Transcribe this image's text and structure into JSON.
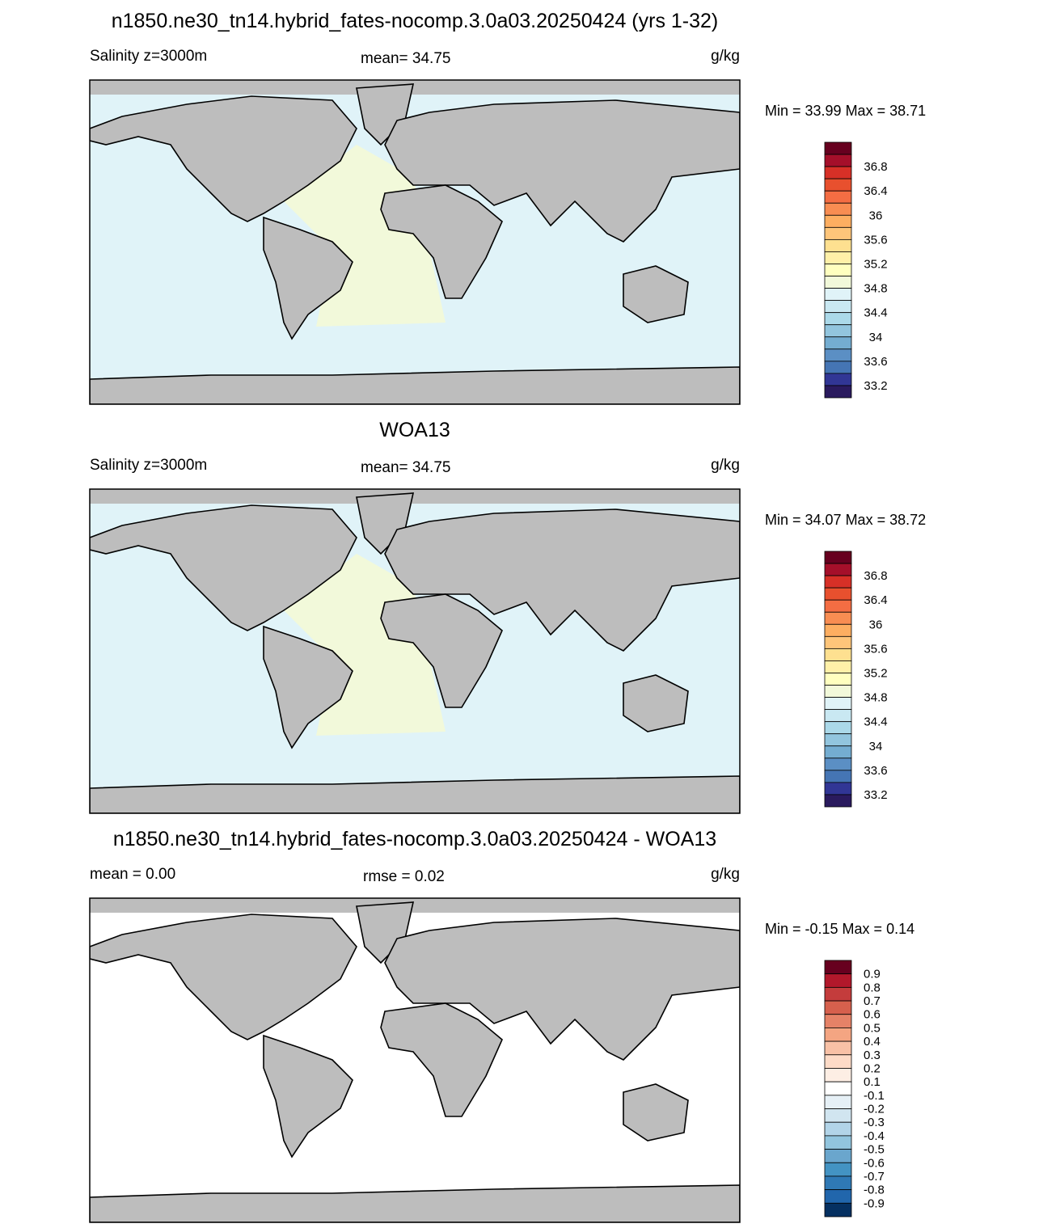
{
  "panels": [
    {
      "title": "n1850.ne30_tn14.hybrid_fates-nocomp.3.0a03.20250424 (yrs 1-32)",
      "left_label": "Salinity z=3000m",
      "center_label": "mean=  34.75",
      "units": "g/kg",
      "min_max": "Min =  33.99 Max =  38.71",
      "colorbar": {
        "labels": [
          36.8,
          36.4,
          36,
          35.6,
          35.2,
          34.8,
          34.4,
          34,
          33.6,
          33.2
        ],
        "colors": [
          "#67001f",
          "#a50f2a",
          "#d73027",
          "#e8502e",
          "#f46d43",
          "#f88d52",
          "#fdae61",
          "#fec57a",
          "#fee090",
          "#fff0a8",
          "#ffffbf",
          "#f2f9da",
          "#e0f3f8",
          "#c9e8f2",
          "#abd9e9",
          "#92c5de",
          "#74add1",
          "#5b8fc4",
          "#4575b4",
          "#313695",
          "#2a1a5e"
        ]
      }
    },
    {
      "title": "WOA13",
      "left_label": "Salinity z=3000m",
      "center_label": "mean=  34.75",
      "units": "g/kg",
      "min_max": "Min =  34.07 Max =  38.72",
      "colorbar": {
        "labels": [
          36.8,
          36.4,
          36,
          35.6,
          35.2,
          34.8,
          34.4,
          34,
          33.6,
          33.2
        ],
        "colors": [
          "#67001f",
          "#a50f2a",
          "#d73027",
          "#e8502e",
          "#f46d43",
          "#f88d52",
          "#fdae61",
          "#fec57a",
          "#fee090",
          "#fff0a8",
          "#ffffbf",
          "#f2f9da",
          "#e0f3f8",
          "#c9e8f2",
          "#abd9e9",
          "#92c5de",
          "#74add1",
          "#5b8fc4",
          "#4575b4",
          "#313695",
          "#2a1a5e"
        ]
      }
    },
    {
      "title": "n1850.ne30_tn14.hybrid_fates-nocomp.3.0a03.20250424 - WOA13",
      "left_label": "mean =   0.00",
      "center_label": "rmse =   0.02",
      "units": "g/kg",
      "min_max": "Min =  -0.15 Max =   0.14",
      "colorbar": {
        "labels": [
          0.9,
          0.8,
          0.7,
          0.6,
          0.5,
          0.4,
          0.3,
          0.2,
          0.1,
          -0.1,
          -0.2,
          -0.3,
          -0.4,
          -0.5,
          -0.6,
          -0.7,
          -0.8,
          -0.9
        ],
        "colors": [
          "#67001f",
          "#b2182b",
          "#c43c3c",
          "#d6604d",
          "#e58267",
          "#f4a582",
          "#f8c1a6",
          "#fddbc7",
          "#fdeee4",
          "#ffffff",
          "#e6f0f6",
          "#d1e5f0",
          "#b2d4e8",
          "#92c5de",
          "#6aa6cd",
          "#4393c3",
          "#2f79b5",
          "#2166ac",
          "#053061"
        ]
      }
    }
  ]
}
